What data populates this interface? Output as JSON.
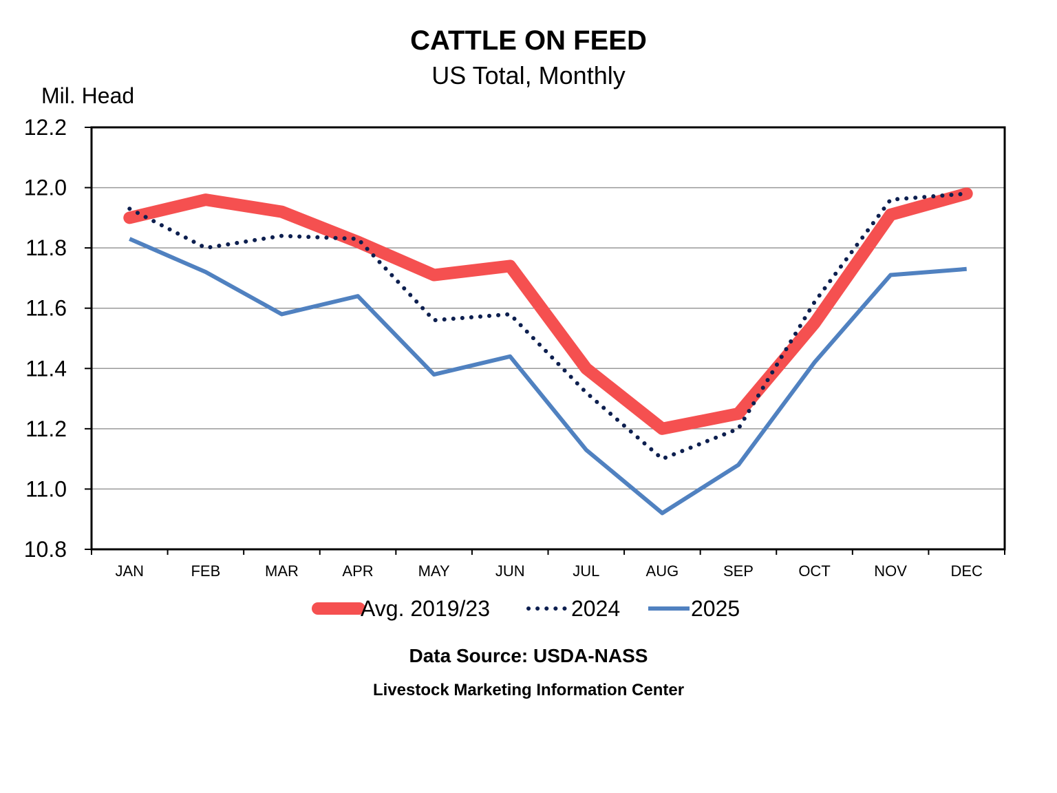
{
  "chart_data": {
    "type": "line",
    "title": "CATTLE ON FEED",
    "subtitle": "US Total, Monthly",
    "ylabel": "Mil. Head",
    "xlabel": "",
    "ylim": [
      10.8,
      12.2
    ],
    "yticks": [
      "10.8",
      "11.0",
      "11.2",
      "11.4",
      "11.6",
      "11.8",
      "12.0",
      "12.2"
    ],
    "grid": true,
    "legend": "bottom",
    "categories": [
      "JAN",
      "FEB",
      "MAR",
      "APR",
      "MAY",
      "JUN",
      "JUL",
      "AUG",
      "SEP",
      "OCT",
      "NOV",
      "DEC"
    ],
    "series": [
      {
        "name": "Avg. 2019/23",
        "color": "#f55050",
        "style": "thick",
        "values": [
          11.9,
          11.96,
          11.92,
          11.82,
          11.71,
          11.74,
          11.4,
          11.2,
          11.25,
          11.55,
          11.91,
          11.98
        ]
      },
      {
        "name": "2024",
        "color": "#0d1f4f",
        "style": "dotted",
        "values": [
          11.93,
          11.8,
          11.84,
          11.83,
          11.56,
          11.58,
          11.32,
          11.1,
          11.2,
          11.62,
          11.96,
          11.98
        ]
      },
      {
        "name": "2025",
        "color": "#5081c0",
        "style": "solid",
        "values": [
          11.83,
          11.72,
          11.58,
          11.64,
          11.38,
          11.44,
          11.13,
          10.92,
          11.08,
          11.42,
          11.71,
          11.73
        ]
      }
    ],
    "source": "Data Source:  USDA-NASS",
    "credit": "Livestock Marketing Information Center"
  }
}
